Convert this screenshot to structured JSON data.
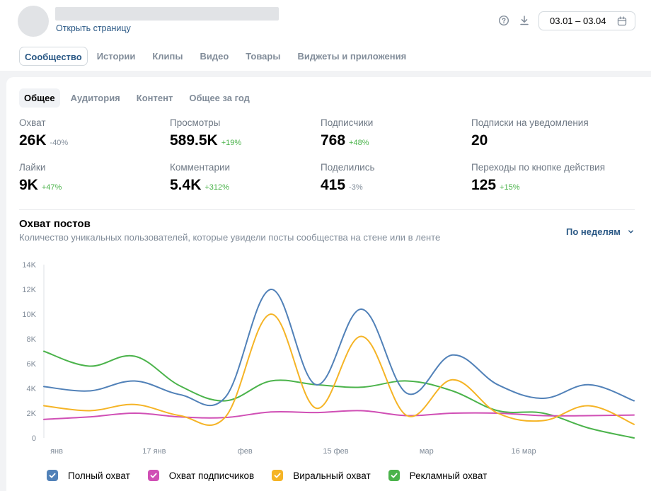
{
  "header": {
    "open_page": "Открыть страницу",
    "date_range": "03.01 – 03.04",
    "icons": [
      "help-icon",
      "download-icon",
      "calendar-icon"
    ]
  },
  "tabs": [
    "Сообщество",
    "Истории",
    "Клипы",
    "Видео",
    "Товары",
    "Виджеты и приложения"
  ],
  "subtabs": [
    "Общее",
    "Аудитория",
    "Контент",
    "Общее за год"
  ],
  "metrics": [
    {
      "label": "Охват",
      "value": "26K",
      "delta": "-40%",
      "trend": "neg"
    },
    {
      "label": "Просмотры",
      "value": "589.5K",
      "delta": "+19%",
      "trend": "pos"
    },
    {
      "label": "Подписчики",
      "value": "768",
      "delta": "+48%",
      "trend": "pos"
    },
    {
      "label": "Подписки на уведомления",
      "value": "20",
      "delta": "",
      "trend": ""
    },
    {
      "label": "Лайки",
      "value": "9K",
      "delta": "+47%",
      "trend": "pos"
    },
    {
      "label": "Комментарии",
      "value": "5.4K",
      "delta": "+312%",
      "trend": "pos"
    },
    {
      "label": "Поделились",
      "value": "415",
      "delta": "-3%",
      "trend": "neg"
    },
    {
      "label": "Переходы по кнопке действия",
      "value": "125",
      "delta": "+15%",
      "trend": "pos"
    }
  ],
  "section": {
    "title": "Охват постов",
    "subtitle": "Количество уникальных пользователей, которые увидели посты сообщества на стене или в ленте",
    "period": "По неделям"
  },
  "colors": {
    "total": "#5181b8",
    "subscribers": "#d04fb5",
    "viral": "#f5b426",
    "ads": "#4bb34b"
  },
  "chart_data": {
    "type": "line",
    "x": [
      "03.01",
      "10.01",
      "17.01",
      "24.01",
      "31.01",
      "07.02",
      "14.02",
      "21.02",
      "28.02",
      "07.03",
      "14.03",
      "21.03",
      "28.03",
      "03.04"
    ],
    "x_tick_labels": [
      "янв",
      "17 янв",
      "фев",
      "15 фев",
      "мар",
      "16 мар"
    ],
    "y_ticks": [
      "0",
      "2K",
      "4K",
      "6K",
      "8K",
      "10K",
      "12K",
      "14K"
    ],
    "ylim": [
      0,
      14000
    ],
    "grid": false,
    "legend_position": "bottom",
    "series": [
      {
        "name": "Полный охват",
        "color": "#5181b8",
        "values": [
          4150,
          3800,
          4600,
          3500,
          3300,
          12000,
          4300,
          10400,
          3600,
          6700,
          4300,
          3200,
          4300,
          3000
        ]
      },
      {
        "name": "Охват подписчиков",
        "color": "#d04fb5",
        "values": [
          1500,
          1700,
          2000,
          1700,
          1650,
          2100,
          2050,
          2200,
          1800,
          2000,
          2000,
          1800,
          1800,
          1850
        ]
      },
      {
        "name": "Виральный охват",
        "color": "#f5b426",
        "values": [
          2600,
          2200,
          2700,
          1800,
          1700,
          10000,
          2400,
          8200,
          1800,
          4700,
          2000,
          1400,
          2600,
          1100
        ]
      },
      {
        "name": "Рекламный охват",
        "color": "#4bb34b",
        "values": [
          7000,
          5800,
          6600,
          4200,
          3000,
          4600,
          4300,
          4100,
          4600,
          3800,
          2200,
          2000,
          800,
          0
        ]
      }
    ]
  }
}
